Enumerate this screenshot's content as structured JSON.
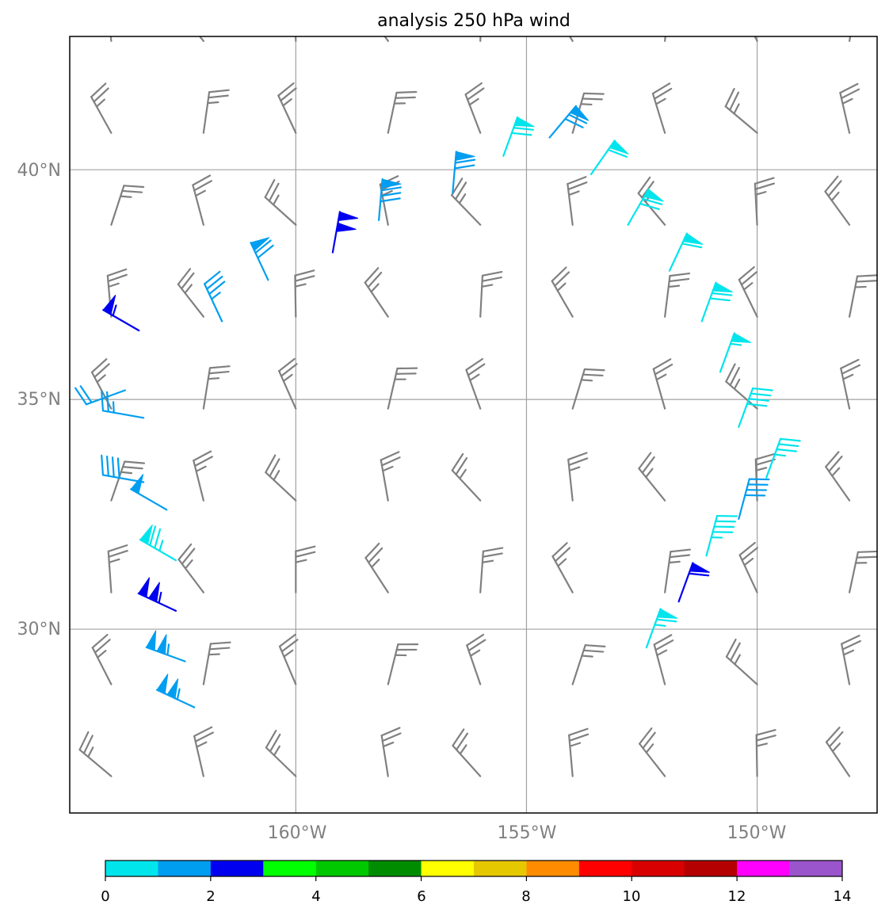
{
  "chart_data": {
    "type": "wind-barb-map",
    "title": "analysis 250 hPa wind",
    "lon_range": [
      -164.9,
      -147.4
    ],
    "lat_range": [
      26.0,
      42.9
    ],
    "grid_lons": [
      -160,
      -155,
      -150
    ],
    "grid_lats": [
      40,
      35,
      30
    ],
    "lon_tick_labels": [
      "160°W",
      "155°W",
      "150°W"
    ],
    "lat_tick_labels": [
      "40°N",
      "35°N",
      "30°N"
    ],
    "colorbar": {
      "min": 0,
      "max": 14,
      "step": 1,
      "tick_values": [
        0,
        2,
        4,
        6,
        8,
        10,
        12,
        14
      ],
      "tick_labels": [
        "0",
        "2",
        "4",
        "6",
        "8",
        "10",
        "12",
        "14"
      ],
      "colors": [
        "#00e5ec",
        "#009ef0",
        "#0000f0",
        "#00ff00",
        "#00c800",
        "#008c00",
        "#ffff00",
        "#e6c800",
        "#ff8c00",
        "#ff0000",
        "#d80000",
        "#b40000",
        "#ff00ff",
        "#9b55cc"
      ]
    },
    "background_color": "#808080",
    "background_grid": {
      "lons": [
        -164,
        -162,
        -160,
        -158,
        -156,
        -154,
        -152,
        -150,
        -148
      ],
      "lats": [
        26.8,
        28.8,
        30.8,
        32.8,
        34.8,
        36.8,
        38.8,
        40.8,
        42.8
      ],
      "speed_kt": 25
    },
    "wind_barbs": [
      {
        "lon": -163.4,
        "lat": 36.5,
        "speed_kt": 55,
        "dir_from": 300,
        "class": 2
      },
      {
        "lon": -163.7,
        "lat": 35.2,
        "speed_kt": 20,
        "dir_from": 250,
        "class": 1
      },
      {
        "lon": -163.3,
        "lat": 34.6,
        "speed_kt": 25,
        "dir_from": 280,
        "class": 1
      },
      {
        "lon": -163.3,
        "lat": 33.2,
        "speed_kt": 40,
        "dir_from": 280,
        "class": 1
      },
      {
        "lon": -162.8,
        "lat": 32.6,
        "speed_kt": 50,
        "dir_from": 300,
        "class": 1
      },
      {
        "lon": -162.6,
        "lat": 31.5,
        "speed_kt": 75,
        "dir_from": 300,
        "class": 0
      },
      {
        "lon": -162.6,
        "lat": 30.4,
        "speed_kt": 105,
        "dir_from": 295,
        "class": 2
      },
      {
        "lon": -162.4,
        "lat": 29.3,
        "speed_kt": 105,
        "dir_from": 290,
        "class": 1
      },
      {
        "lon": -162.2,
        "lat": 28.3,
        "speed_kt": 105,
        "dir_from": 295,
        "class": 1
      },
      {
        "lon": -161.6,
        "lat": 36.7,
        "speed_kt": 35,
        "dir_from": 335,
        "class": 1
      },
      {
        "lon": -160.6,
        "lat": 37.6,
        "speed_kt": 70,
        "dir_from": 335,
        "class": 1
      },
      {
        "lon": -159.2,
        "lat": 38.2,
        "speed_kt": 100,
        "dir_from": 10,
        "class": 2
      },
      {
        "lon": -158.2,
        "lat": 38.9,
        "speed_kt": 80,
        "dir_from": 5,
        "class": 1
      },
      {
        "lon": -156.6,
        "lat": 39.5,
        "speed_kt": 70,
        "dir_from": 5,
        "class": 1
      },
      {
        "lon": -155.5,
        "lat": 40.3,
        "speed_kt": 70,
        "dir_from": 20,
        "class": 0
      },
      {
        "lon": -154.5,
        "lat": 40.7,
        "speed_kt": 70,
        "dir_from": 40,
        "class": 1
      },
      {
        "lon": -153.6,
        "lat": 39.9,
        "speed_kt": 60,
        "dir_from": 35,
        "class": 0
      },
      {
        "lon": -152.8,
        "lat": 38.8,
        "speed_kt": 70,
        "dir_from": 30,
        "class": 0
      },
      {
        "lon": -151.9,
        "lat": 37.8,
        "speed_kt": 60,
        "dir_from": 25,
        "class": 0
      },
      {
        "lon": -151.2,
        "lat": 36.7,
        "speed_kt": 70,
        "dir_from": 20,
        "class": 0
      },
      {
        "lon": -150.8,
        "lat": 35.6,
        "speed_kt": 55,
        "dir_from": 20,
        "class": 0
      },
      {
        "lon": -150.4,
        "lat": 34.4,
        "speed_kt": 40,
        "dir_from": 20,
        "class": 0
      },
      {
        "lon": -149.8,
        "lat": 33.3,
        "speed_kt": 35,
        "dir_from": 20,
        "class": 0
      },
      {
        "lon": -150.4,
        "lat": 32.4,
        "speed_kt": 40,
        "dir_from": 15,
        "class": 1
      },
      {
        "lon": -151.1,
        "lat": 31.6,
        "speed_kt": 45,
        "dir_from": 15,
        "class": 0
      },
      {
        "lon": -151.7,
        "lat": 30.6,
        "speed_kt": 60,
        "dir_from": 20,
        "class": 2
      },
      {
        "lon": -152.4,
        "lat": 29.6,
        "speed_kt": 65,
        "dir_from": 20,
        "class": 0
      }
    ]
  }
}
